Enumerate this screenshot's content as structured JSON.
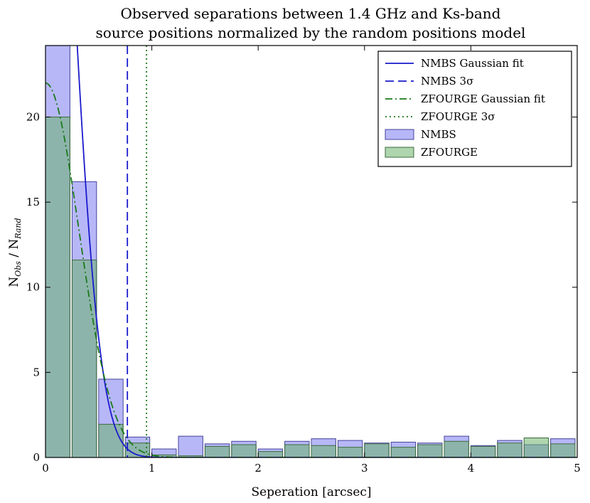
{
  "chart_data": {
    "type": "bar",
    "title_lines": [
      "Observed separations between 1.4 GHz and Ks-band",
      "source positions normalized by the random positions model"
    ],
    "xlabel": "Seperation [arcsec]",
    "ylabel_main": "N",
    "ylabel_sub1": "Obs",
    "ylabel_mid": " / N",
    "ylabel_sub2": "Rand",
    "xlim": [
      0,
      5
    ],
    "ylim": [
      0,
      24.2
    ],
    "xticks": [
      0,
      1,
      2,
      3,
      4,
      5
    ],
    "yticks": [
      0,
      5,
      10,
      15,
      20
    ],
    "bin_width": 0.25,
    "bar_width": 0.23,
    "bin_starts": [
      0,
      0.25,
      0.5,
      0.75,
      1.0,
      1.25,
      1.5,
      1.75,
      2.0,
      2.25,
      2.5,
      2.75,
      3.0,
      3.25,
      3.5,
      3.75,
      4.0,
      4.25,
      4.5,
      4.75
    ],
    "series": [
      {
        "name": "NMBS",
        "color": "#7b7bf2",
        "edge": "#44449a",
        "values": [
          24.5,
          16.2,
          4.6,
          1.2,
          0.5,
          1.25,
          0.8,
          0.95,
          0.5,
          0.95,
          1.1,
          1.0,
          0.85,
          0.9,
          0.85,
          1.25,
          0.7,
          1.0,
          0.75,
          1.1
        ]
      },
      {
        "name": "ZFOURGE",
        "color": "#6cb26c",
        "edge": "#3c6b3c",
        "values": [
          20.0,
          11.6,
          1.95,
          0.85,
          0.15,
          0.1,
          0.65,
          0.75,
          0.35,
          0.75,
          0.7,
          0.6,
          0.8,
          0.6,
          0.75,
          0.95,
          0.65,
          0.85,
          1.15,
          0.8
        ]
      }
    ],
    "fits": [
      {
        "name": "NMBS Gaussian fit",
        "color": "#1a1acc",
        "style": "solid",
        "amplitude": 48,
        "sigma": 0.255
      },
      {
        "name": "ZFOURGE Gaussian fit",
        "color": "#1a7a1a",
        "style": "dashdot",
        "amplitude": 22,
        "sigma": 0.315
      }
    ],
    "vlines": [
      {
        "name": "NMBS 3σ",
        "color": "#1a1acc",
        "style": "dashed",
        "x": 0.77
      },
      {
        "name": "ZFOURGE 3σ",
        "color": "#1a7a1a",
        "style": "dotted",
        "x": 0.95
      }
    ],
    "grid": false,
    "legend_position": "top-right",
    "legend": [
      {
        "kind": "line",
        "style": "solid",
        "color": "#1a1acc",
        "label": "NMBS Gaussian fit"
      },
      {
        "kind": "line",
        "style": "dashed",
        "color": "#1a1acc",
        "label": "NMBS 3σ"
      },
      {
        "kind": "line",
        "style": "dashdot",
        "color": "#1a7a1a",
        "label": "ZFOURGE Gaussian fit"
      },
      {
        "kind": "line",
        "style": "dotted",
        "color": "#1a7a1a",
        "label": "ZFOURGE 3σ"
      },
      {
        "kind": "patch",
        "color": "#7b7bf2",
        "edge": "#44449a",
        "label": "NMBS"
      },
      {
        "kind": "patch",
        "color": "#6cb26c",
        "edge": "#3c6b3c",
        "label": "ZFOURGE"
      }
    ]
  }
}
